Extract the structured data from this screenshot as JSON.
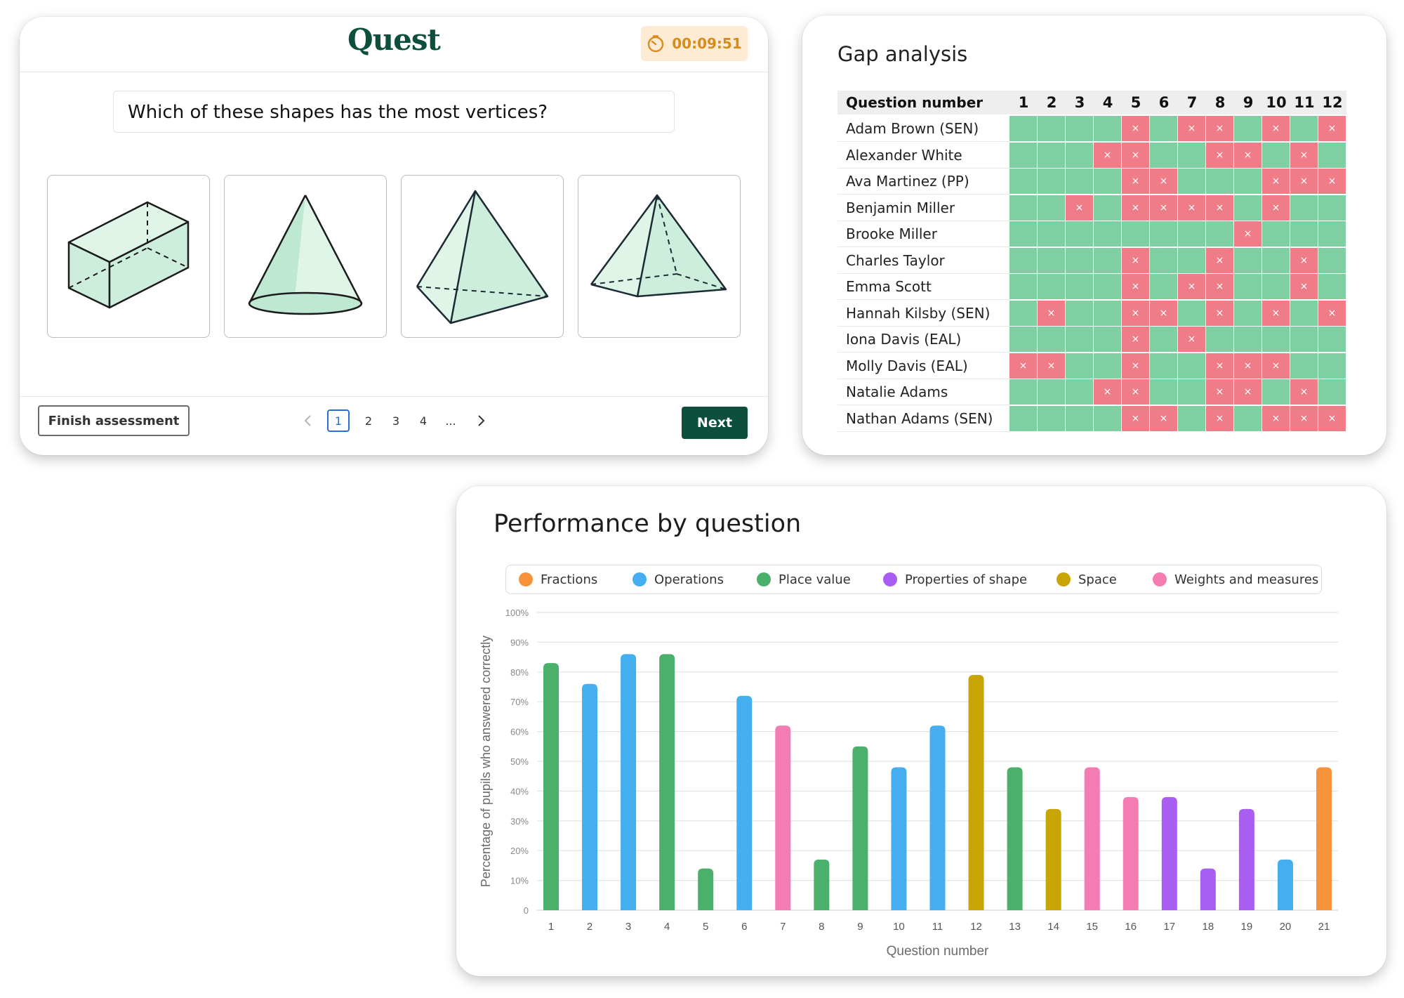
{
  "quest": {
    "logo": "Quest",
    "timer": "00:09:51",
    "question": "Which of these shapes has the most vertices?",
    "finish_label": "Finish assessment",
    "pages": [
      "1",
      "2",
      "3",
      "4",
      "..."
    ],
    "current_page": "1",
    "next_label": "Next",
    "options": [
      "cuboid",
      "cone",
      "square-based-pyramid",
      "square-pyramid-alt"
    ],
    "accent": "#0d4f3c",
    "timer_color": "#d78c1b"
  },
  "gap": {
    "title": "Gap analysis",
    "header_label": "Question number",
    "questions": [
      "1",
      "2",
      "3",
      "4",
      "5",
      "6",
      "7",
      "8",
      "9",
      "10",
      "11",
      "12"
    ],
    "pupils": [
      {
        "name": "Adam Brown (SEN)",
        "wrong": [
          5,
          7,
          8,
          10,
          12
        ]
      },
      {
        "name": "Alexander White",
        "wrong": [
          4,
          5,
          8,
          9,
          11
        ]
      },
      {
        "name": "Ava Martinez (PP)",
        "wrong": [
          5,
          6,
          10,
          11,
          12
        ]
      },
      {
        "name": "Benjamin Miller",
        "wrong": [
          3,
          5,
          6,
          7,
          8,
          10
        ]
      },
      {
        "name": "Brooke Miller",
        "wrong": [
          9
        ]
      },
      {
        "name": "Charles Taylor",
        "wrong": [
          5,
          8,
          11
        ]
      },
      {
        "name": "Emma Scott",
        "wrong": [
          5,
          7,
          8,
          11
        ]
      },
      {
        "name": "Hannah Kilsby (SEN)",
        "wrong": [
          2,
          5,
          6,
          8,
          10,
          12
        ]
      },
      {
        "name": "Iona Davis (EAL)",
        "wrong": [
          5,
          7
        ]
      },
      {
        "name": "Molly Davis (EAL)",
        "wrong": [
          1,
          2,
          5,
          8,
          9,
          10
        ]
      },
      {
        "name": "Natalie Adams",
        "wrong": [
          4,
          5,
          8,
          9,
          11
        ]
      },
      {
        "name": "Nathan Adams (SEN)",
        "wrong": [
          5,
          6,
          8,
          10,
          11,
          12
        ]
      }
    ],
    "wrong_mark": "×",
    "colors": {
      "correct": "#7ecfa1",
      "wrong": "#f07c87"
    }
  },
  "perf": {
    "title": "Performance by question",
    "legend": [
      {
        "name": "Fractions",
        "color": "#f7923a"
      },
      {
        "name": "Operations",
        "color": "#44aef0"
      },
      {
        "name": "Place value",
        "color": "#4bb06b"
      },
      {
        "name": "Properties of shape",
        "color": "#a95ef2"
      },
      {
        "name": "Space",
        "color": "#c9a406"
      },
      {
        "name": "Weights and measures",
        "color": "#f47cb2"
      }
    ]
  },
  "chart_data": {
    "type": "bar",
    "title": "Performance by question",
    "xlabel": "Question number",
    "ylabel": "Percentage of pupils who answered correctly",
    "ylim": [
      0,
      100
    ],
    "yticks": [
      "0",
      "10%",
      "20%",
      "30%",
      "40%",
      "50%",
      "60%",
      "70%",
      "80%",
      "90%",
      "100%"
    ],
    "grid": true,
    "legend_position": "top",
    "categories": [
      "1",
      "2",
      "3",
      "4",
      "5",
      "6",
      "7",
      "8",
      "9",
      "10",
      "11",
      "12",
      "13",
      "14",
      "15",
      "16",
      "17",
      "18",
      "19",
      "20",
      "21"
    ],
    "values": [
      83,
      76,
      86,
      86,
      14,
      72,
      62,
      17,
      55,
      48,
      62,
      79,
      48,
      34,
      48,
      38,
      38,
      14,
      34,
      17,
      48
    ],
    "topics": [
      "Place value",
      "Operations",
      "Operations",
      "Place value",
      "Place value",
      "Operations",
      "Weights and measures",
      "Place value",
      "Place value",
      "Operations",
      "Operations",
      "Space",
      "Place value",
      "Space",
      "Weights and measures",
      "Weights and measures",
      "Properties of shape",
      "Properties of shape",
      "Properties of shape",
      "Operations",
      "Fractions"
    ]
  }
}
